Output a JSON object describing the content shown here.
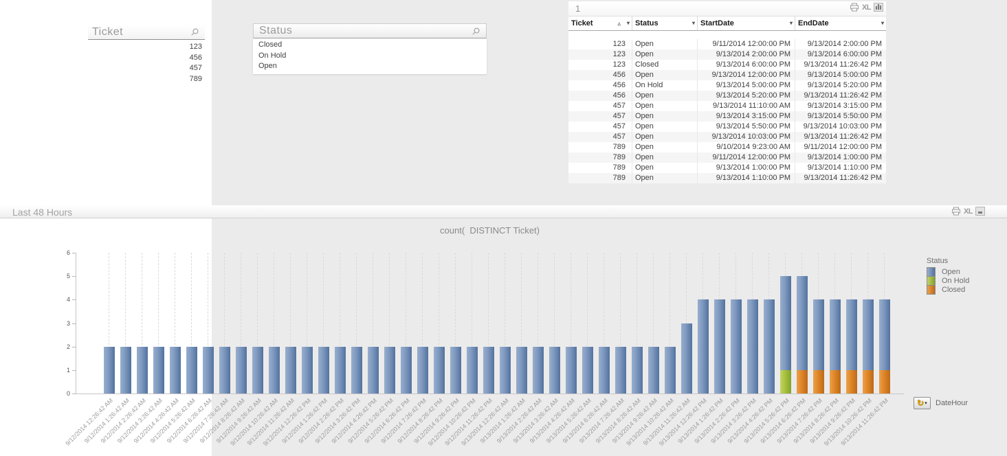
{
  "ticket_listbox": {
    "title": "Ticket",
    "items": [
      "123",
      "456",
      "457",
      "789"
    ]
  },
  "status_listbox": {
    "title": "Status",
    "items": [
      "Closed",
      "On Hold",
      "Open"
    ]
  },
  "table": {
    "caption": "1",
    "xl_label": "XL",
    "columns": [
      "Ticket",
      "Status",
      "StartDate",
      "EndDate"
    ],
    "sort_column": "Ticket",
    "rows": [
      [
        "123",
        "Open",
        "9/11/2014 12:00:00 PM",
        "9/13/2014 2:00:00 PM"
      ],
      [
        "123",
        "Open",
        "9/13/2014 2:00:00 PM",
        "9/13/2014 6:00:00 PM"
      ],
      [
        "123",
        "Closed",
        "9/13/2014 6:00:00 PM",
        "9/13/2014 11:26:42 PM"
      ],
      [
        "456",
        "Open",
        "9/13/2014 12:00:00 PM",
        "9/13/2014 5:00:00 PM"
      ],
      [
        "456",
        "On Hold",
        "9/13/2014 5:00:00 PM",
        "9/13/2014 5:20:00 PM"
      ],
      [
        "456",
        "Open",
        "9/13/2014 5:20:00 PM",
        "9/13/2014 11:26:42 PM"
      ],
      [
        "457",
        "Open",
        "9/13/2014 11:10:00 AM",
        "9/13/2014 3:15:00 PM"
      ],
      [
        "457",
        "Open",
        "9/13/2014 3:15:00 PM",
        "9/13/2014 5:50:00 PM"
      ],
      [
        "457",
        "Open",
        "9/13/2014 5:50:00 PM",
        "9/13/2014 10:03:00 PM"
      ],
      [
        "457",
        "Open",
        "9/13/2014 10:03:00 PM",
        "9/13/2014 11:26:42 PM"
      ],
      [
        "789",
        "Open",
        "9/10/2014 9:23:00 AM",
        "9/11/2014 12:00:00 PM"
      ],
      [
        "789",
        "Open",
        "9/11/2014 12:00:00 PM",
        "9/13/2014 1:00:00 PM"
      ],
      [
        "789",
        "Open",
        "9/13/2014 1:00:00 PM",
        "9/13/2014 1:10:00 PM"
      ],
      [
        "789",
        "Open",
        "9/13/2014 1:10:00 PM",
        "9/13/2014 11:26:42 PM"
      ]
    ]
  },
  "chart": {
    "caption": "Last 48 Hours",
    "xl_label": "XL",
    "title": "count(  DISTINCT Ticket)",
    "cycle_label": "DateHour"
  },
  "chart_data": {
    "type": "bar",
    "stacked": true,
    "title": "count(  DISTINCT Ticket)",
    "legend_title": "Status",
    "legend_position": "right",
    "grid": "vertical-dashed",
    "ylim": [
      0,
      6
    ],
    "yticks": [
      0,
      1,
      2,
      3,
      4,
      5,
      6
    ],
    "x": [
      "9/12/2014 12:26:42 AM",
      "9/12/2014 1:26:42 AM",
      "9/12/2014 2:26:42 AM",
      "9/12/2014 3:26:42 AM",
      "9/12/2014 4:26:42 AM",
      "9/12/2014 5:26:42 AM",
      "9/12/2014 6:26:42 AM",
      "9/12/2014 7:26:42 AM",
      "9/12/2014 8:26:42 AM",
      "9/12/2014 9:26:42 AM",
      "9/12/2014 10:26:42 AM",
      "9/12/2014 11:26:42 AM",
      "9/12/2014 12:26:42 PM",
      "9/12/2014 1:26:42 PM",
      "9/12/2014 2:26:42 PM",
      "9/12/2014 3:26:42 PM",
      "9/12/2014 4:26:42 PM",
      "9/12/2014 5:26:42 PM",
      "9/12/2014 6:26:42 PM",
      "9/12/2014 7:26:42 PM",
      "9/12/2014 8:26:42 PM",
      "9/12/2014 9:26:42 PM",
      "9/12/2014 10:26:42 PM",
      "9/12/2014 11:26:42 PM",
      "9/13/2014 12:26:42 AM",
      "9/13/2014 1:26:42 AM",
      "9/13/2014 2:26:42 AM",
      "9/13/2014 3:26:42 AM",
      "9/13/2014 4:26:42 AM",
      "9/13/2014 5:26:42 AM",
      "9/13/2014 6:26:42 AM",
      "9/13/2014 7:26:42 AM",
      "9/13/2014 8:26:42 AM",
      "9/13/2014 9:26:42 AM",
      "9/13/2014 10:26:42 AM",
      "9/13/2014 11:26:42 AM",
      "9/13/2014 12:26:42 PM",
      "9/13/2014 1:26:42 PM",
      "9/13/2014 2:26:42 PM",
      "9/13/2014 3:26:42 PM",
      "9/13/2014 4:26:42 PM",
      "9/13/2014 5:26:42 PM",
      "9/13/2014 6:26:42 PM",
      "9/13/2014 7:26:42 PM",
      "9/13/2014 8:26:42 PM",
      "9/13/2014 9:26:42 PM",
      "9/13/2014 10:26:42 PM",
      "9/13/2014 11:26:42 PM"
    ],
    "series": [
      {
        "name": "Open",
        "color": "#7d98bf",
        "color_light": "#98aecd",
        "color_dark": "#52729e",
        "values": [
          2,
          2,
          2,
          2,
          2,
          2,
          2,
          2,
          2,
          2,
          2,
          2,
          2,
          2,
          2,
          2,
          2,
          2,
          2,
          2,
          2,
          2,
          2,
          2,
          2,
          2,
          2,
          2,
          2,
          2,
          2,
          2,
          2,
          2,
          2,
          3,
          4,
          4,
          4,
          4,
          4,
          4,
          4,
          3,
          3,
          3,
          3,
          3
        ]
      },
      {
        "name": "On Hold",
        "color": "#a7c13d",
        "color_light": "#c2d468",
        "color_dark": "#83a12c",
        "values": [
          0,
          0,
          0,
          0,
          0,
          0,
          0,
          0,
          0,
          0,
          0,
          0,
          0,
          0,
          0,
          0,
          0,
          0,
          0,
          0,
          0,
          0,
          0,
          0,
          0,
          0,
          0,
          0,
          0,
          0,
          0,
          0,
          0,
          0,
          0,
          0,
          0,
          0,
          0,
          0,
          0,
          1,
          0,
          0,
          0,
          0,
          0,
          0
        ]
      },
      {
        "name": "Closed",
        "color": "#de8527",
        "color_light": "#eda14b",
        "color_dark": "#bd6a19",
        "values": [
          0,
          0,
          0,
          0,
          0,
          0,
          0,
          0,
          0,
          0,
          0,
          0,
          0,
          0,
          0,
          0,
          0,
          0,
          0,
          0,
          0,
          0,
          0,
          0,
          0,
          0,
          0,
          0,
          0,
          0,
          0,
          0,
          0,
          0,
          0,
          0,
          0,
          0,
          0,
          0,
          0,
          0,
          1,
          1,
          1,
          1,
          1,
          1
        ]
      }
    ]
  }
}
